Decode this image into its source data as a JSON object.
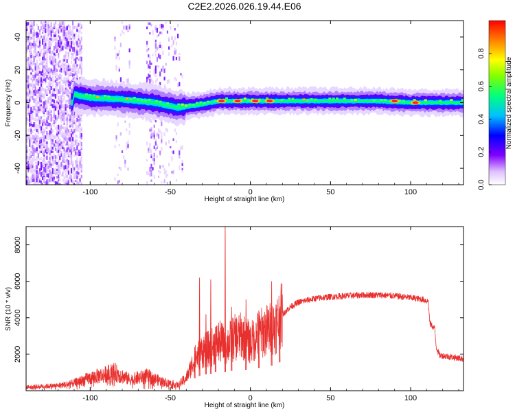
{
  "title": "C2E2.2026.026.19.44.E06",
  "chart_data": [
    {
      "type": "heatmap",
      "name": "spectrogram",
      "xlabel": "Height of straight line (km)",
      "ylabel": "Frequency (Hz)",
      "xlim": [
        -140,
        133
      ],
      "ylim": [
        -50,
        50
      ],
      "xticks": [
        -100,
        -50,
        0,
        50,
        100
      ],
      "yticks": [
        -40,
        -20,
        0,
        20,
        40
      ],
      "colorbar": {
        "label": "Normalized spectral amplitude",
        "range": [
          0,
          1
        ],
        "ticks": [
          0.0,
          0.2,
          0.4,
          0.6,
          0.8
        ],
        "tick_labels": [
          "0.0",
          "0.2",
          "0.4",
          "0.6",
          "0.8"
        ],
        "colormap": [
          "#ffffff",
          "#c080ff",
          "#6000ff",
          "#0000ff",
          "#00c0ff",
          "#00ff80",
          "#80ff00",
          "#ffff00",
          "#ff8000",
          "#ff0000"
        ]
      },
      "ridge": [
        {
          "x": -110,
          "f": 5
        },
        {
          "x": -100,
          "f": 3
        },
        {
          "x": -80,
          "f": 2
        },
        {
          "x": -60,
          "f": 0
        },
        {
          "x": -45,
          "f": -3
        },
        {
          "x": -30,
          "f": -1
        },
        {
          "x": -20,
          "f": 1
        },
        {
          "x": -10,
          "f": 1
        },
        {
          "x": 0,
          "f": 1
        },
        {
          "x": 20,
          "f": 1
        },
        {
          "x": 50,
          "f": 1
        },
        {
          "x": 80,
          "f": 1
        },
        {
          "x": 100,
          "f": 0
        },
        {
          "x": 133,
          "f": 0
        }
      ],
      "hotspots": [
        {
          "x": -18,
          "f": 1
        },
        {
          "x": -8,
          "f": 1
        },
        {
          "x": 3,
          "f": 1
        },
        {
          "x": 12,
          "f": 1
        },
        {
          "x": 90,
          "f": 1
        },
        {
          "x": 103,
          "f": 0
        }
      ]
    },
    {
      "type": "line",
      "name": "snr",
      "xlabel": "Height of straight line (km)",
      "ylabel": "SNR (10 * v/v)",
      "xlim": [
        -140,
        133
      ],
      "ylim": [
        0,
        9000
      ],
      "xticks": [
        -100,
        -50,
        0,
        50,
        100
      ],
      "yticks": [
        2000,
        4000,
        6000,
        8000
      ],
      "color": "#e8302e",
      "series": [
        {
          "x": -140,
          "y": 200
        },
        {
          "x": -120,
          "y": 280
        },
        {
          "x": -110,
          "y": 420
        },
        {
          "x": -100,
          "y": 700
        },
        {
          "x": -85,
          "y": 1000
        },
        {
          "x": -75,
          "y": 600
        },
        {
          "x": -65,
          "y": 800
        },
        {
          "x": -55,
          "y": 500
        },
        {
          "x": -45,
          "y": 300
        },
        {
          "x": -40,
          "y": 700
        },
        {
          "x": -35,
          "y": 1700
        },
        {
          "x": -30,
          "y": 2200
        },
        {
          "x": -25,
          "y": 2300
        },
        {
          "x": -20,
          "y": 2700
        },
        {
          "x": -15,
          "y": 2500
        },
        {
          "x": -10,
          "y": 2900
        },
        {
          "x": -5,
          "y": 3000
        },
        {
          "x": 0,
          "y": 2600
        },
        {
          "x": 5,
          "y": 3100
        },
        {
          "x": 10,
          "y": 3300
        },
        {
          "x": 15,
          "y": 3500
        },
        {
          "x": 20,
          "y": 4200
        },
        {
          "x": 25,
          "y": 4600
        },
        {
          "x": 30,
          "y": 4850
        },
        {
          "x": 40,
          "y": 5050
        },
        {
          "x": 50,
          "y": 5150
        },
        {
          "x": 60,
          "y": 5200
        },
        {
          "x": 70,
          "y": 5250
        },
        {
          "x": 80,
          "y": 5250
        },
        {
          "x": 90,
          "y": 5200
        },
        {
          "x": 100,
          "y": 5100
        },
        {
          "x": 108,
          "y": 5000
        },
        {
          "x": 111,
          "y": 4900
        },
        {
          "x": 112,
          "y": 3700
        },
        {
          "x": 115,
          "y": 3400
        },
        {
          "x": 116,
          "y": 2400
        },
        {
          "x": 118,
          "y": 1950
        },
        {
          "x": 125,
          "y": 1850
        },
        {
          "x": 133,
          "y": 1750
        }
      ],
      "spikes": [
        {
          "x": -35,
          "y": 2400
        },
        {
          "x": -32,
          "y": 6200
        },
        {
          "x": -28,
          "y": 4200
        },
        {
          "x": -25,
          "y": 6100
        },
        {
          "x": -22,
          "y": 3500
        },
        {
          "x": -16,
          "y": 9000
        },
        {
          "x": -12,
          "y": 4600
        },
        {
          "x": -3,
          "y": 5000
        },
        {
          "x": 5,
          "y": 4400
        },
        {
          "x": 13,
          "y": 6000
        },
        {
          "x": 18,
          "y": 4500
        }
      ]
    }
  ]
}
